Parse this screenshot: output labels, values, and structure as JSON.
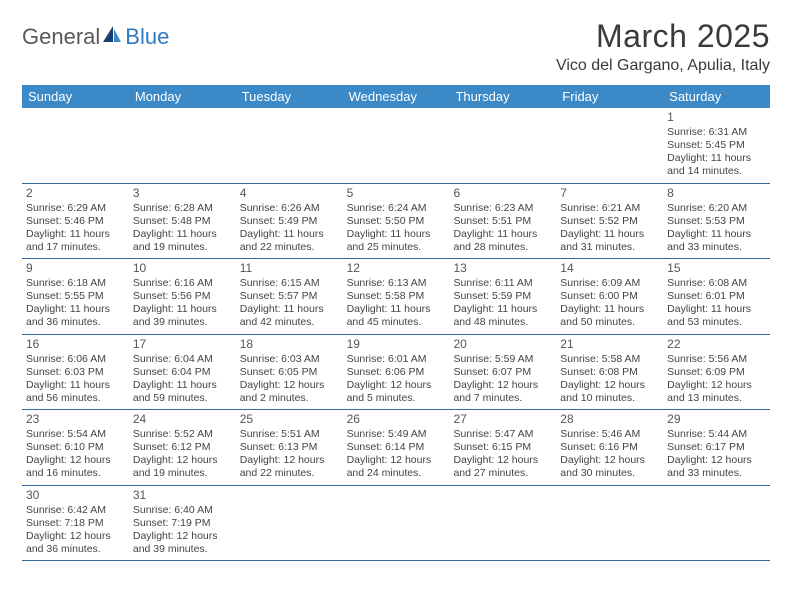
{
  "logo": {
    "word1": "General",
    "word2": "Blue"
  },
  "title": "March 2025",
  "location": "Vico del Gargano, Apulia, Italy",
  "colors": {
    "header_bg": "#3b89c7",
    "header_text": "#ffffff",
    "row_border": "#356a9a",
    "logo_gray": "#5a5a5a",
    "logo_blue": "#2f7bbf",
    "body_text": "#444444",
    "bg": "#ffffff"
  },
  "typography": {
    "title_fontsize": 32,
    "location_fontsize": 16,
    "weekday_fontsize": 13,
    "daynum_fontsize": 12,
    "body_fontsize": 10.5
  },
  "weekdays": [
    "Sunday",
    "Monday",
    "Tuesday",
    "Wednesday",
    "Thursday",
    "Friday",
    "Saturday"
  ],
  "weeks": [
    [
      null,
      null,
      null,
      null,
      null,
      null,
      {
        "n": "1",
        "sunrise": "Sunrise: 6:31 AM",
        "sunset": "Sunset: 5:45 PM",
        "daylight1": "Daylight: 11 hours",
        "daylight2": "and 14 minutes."
      }
    ],
    [
      {
        "n": "2",
        "sunrise": "Sunrise: 6:29 AM",
        "sunset": "Sunset: 5:46 PM",
        "daylight1": "Daylight: 11 hours",
        "daylight2": "and 17 minutes."
      },
      {
        "n": "3",
        "sunrise": "Sunrise: 6:28 AM",
        "sunset": "Sunset: 5:48 PM",
        "daylight1": "Daylight: 11 hours",
        "daylight2": "and 19 minutes."
      },
      {
        "n": "4",
        "sunrise": "Sunrise: 6:26 AM",
        "sunset": "Sunset: 5:49 PM",
        "daylight1": "Daylight: 11 hours",
        "daylight2": "and 22 minutes."
      },
      {
        "n": "5",
        "sunrise": "Sunrise: 6:24 AM",
        "sunset": "Sunset: 5:50 PM",
        "daylight1": "Daylight: 11 hours",
        "daylight2": "and 25 minutes."
      },
      {
        "n": "6",
        "sunrise": "Sunrise: 6:23 AM",
        "sunset": "Sunset: 5:51 PM",
        "daylight1": "Daylight: 11 hours",
        "daylight2": "and 28 minutes."
      },
      {
        "n": "7",
        "sunrise": "Sunrise: 6:21 AM",
        "sunset": "Sunset: 5:52 PM",
        "daylight1": "Daylight: 11 hours",
        "daylight2": "and 31 minutes."
      },
      {
        "n": "8",
        "sunrise": "Sunrise: 6:20 AM",
        "sunset": "Sunset: 5:53 PM",
        "daylight1": "Daylight: 11 hours",
        "daylight2": "and 33 minutes."
      }
    ],
    [
      {
        "n": "9",
        "sunrise": "Sunrise: 6:18 AM",
        "sunset": "Sunset: 5:55 PM",
        "daylight1": "Daylight: 11 hours",
        "daylight2": "and 36 minutes."
      },
      {
        "n": "10",
        "sunrise": "Sunrise: 6:16 AM",
        "sunset": "Sunset: 5:56 PM",
        "daylight1": "Daylight: 11 hours",
        "daylight2": "and 39 minutes."
      },
      {
        "n": "11",
        "sunrise": "Sunrise: 6:15 AM",
        "sunset": "Sunset: 5:57 PM",
        "daylight1": "Daylight: 11 hours",
        "daylight2": "and 42 minutes."
      },
      {
        "n": "12",
        "sunrise": "Sunrise: 6:13 AM",
        "sunset": "Sunset: 5:58 PM",
        "daylight1": "Daylight: 11 hours",
        "daylight2": "and 45 minutes."
      },
      {
        "n": "13",
        "sunrise": "Sunrise: 6:11 AM",
        "sunset": "Sunset: 5:59 PM",
        "daylight1": "Daylight: 11 hours",
        "daylight2": "and 48 minutes."
      },
      {
        "n": "14",
        "sunrise": "Sunrise: 6:09 AM",
        "sunset": "Sunset: 6:00 PM",
        "daylight1": "Daylight: 11 hours",
        "daylight2": "and 50 minutes."
      },
      {
        "n": "15",
        "sunrise": "Sunrise: 6:08 AM",
        "sunset": "Sunset: 6:01 PM",
        "daylight1": "Daylight: 11 hours",
        "daylight2": "and 53 minutes."
      }
    ],
    [
      {
        "n": "16",
        "sunrise": "Sunrise: 6:06 AM",
        "sunset": "Sunset: 6:03 PM",
        "daylight1": "Daylight: 11 hours",
        "daylight2": "and 56 minutes."
      },
      {
        "n": "17",
        "sunrise": "Sunrise: 6:04 AM",
        "sunset": "Sunset: 6:04 PM",
        "daylight1": "Daylight: 11 hours",
        "daylight2": "and 59 minutes."
      },
      {
        "n": "18",
        "sunrise": "Sunrise: 6:03 AM",
        "sunset": "Sunset: 6:05 PM",
        "daylight1": "Daylight: 12 hours",
        "daylight2": "and 2 minutes."
      },
      {
        "n": "19",
        "sunrise": "Sunrise: 6:01 AM",
        "sunset": "Sunset: 6:06 PM",
        "daylight1": "Daylight: 12 hours",
        "daylight2": "and 5 minutes."
      },
      {
        "n": "20",
        "sunrise": "Sunrise: 5:59 AM",
        "sunset": "Sunset: 6:07 PM",
        "daylight1": "Daylight: 12 hours",
        "daylight2": "and 7 minutes."
      },
      {
        "n": "21",
        "sunrise": "Sunrise: 5:58 AM",
        "sunset": "Sunset: 6:08 PM",
        "daylight1": "Daylight: 12 hours",
        "daylight2": "and 10 minutes."
      },
      {
        "n": "22",
        "sunrise": "Sunrise: 5:56 AM",
        "sunset": "Sunset: 6:09 PM",
        "daylight1": "Daylight: 12 hours",
        "daylight2": "and 13 minutes."
      }
    ],
    [
      {
        "n": "23",
        "sunrise": "Sunrise: 5:54 AM",
        "sunset": "Sunset: 6:10 PM",
        "daylight1": "Daylight: 12 hours",
        "daylight2": "and 16 minutes."
      },
      {
        "n": "24",
        "sunrise": "Sunrise: 5:52 AM",
        "sunset": "Sunset: 6:12 PM",
        "daylight1": "Daylight: 12 hours",
        "daylight2": "and 19 minutes."
      },
      {
        "n": "25",
        "sunrise": "Sunrise: 5:51 AM",
        "sunset": "Sunset: 6:13 PM",
        "daylight1": "Daylight: 12 hours",
        "daylight2": "and 22 minutes."
      },
      {
        "n": "26",
        "sunrise": "Sunrise: 5:49 AM",
        "sunset": "Sunset: 6:14 PM",
        "daylight1": "Daylight: 12 hours",
        "daylight2": "and 24 minutes."
      },
      {
        "n": "27",
        "sunrise": "Sunrise: 5:47 AM",
        "sunset": "Sunset: 6:15 PM",
        "daylight1": "Daylight: 12 hours",
        "daylight2": "and 27 minutes."
      },
      {
        "n": "28",
        "sunrise": "Sunrise: 5:46 AM",
        "sunset": "Sunset: 6:16 PM",
        "daylight1": "Daylight: 12 hours",
        "daylight2": "and 30 minutes."
      },
      {
        "n": "29",
        "sunrise": "Sunrise: 5:44 AM",
        "sunset": "Sunset: 6:17 PM",
        "daylight1": "Daylight: 12 hours",
        "daylight2": "and 33 minutes."
      }
    ],
    [
      {
        "n": "30",
        "sunrise": "Sunrise: 6:42 AM",
        "sunset": "Sunset: 7:18 PM",
        "daylight1": "Daylight: 12 hours",
        "daylight2": "and 36 minutes."
      },
      {
        "n": "31",
        "sunrise": "Sunrise: 6:40 AM",
        "sunset": "Sunset: 7:19 PM",
        "daylight1": "Daylight: 12 hours",
        "daylight2": "and 39 minutes."
      },
      null,
      null,
      null,
      null,
      null
    ]
  ]
}
